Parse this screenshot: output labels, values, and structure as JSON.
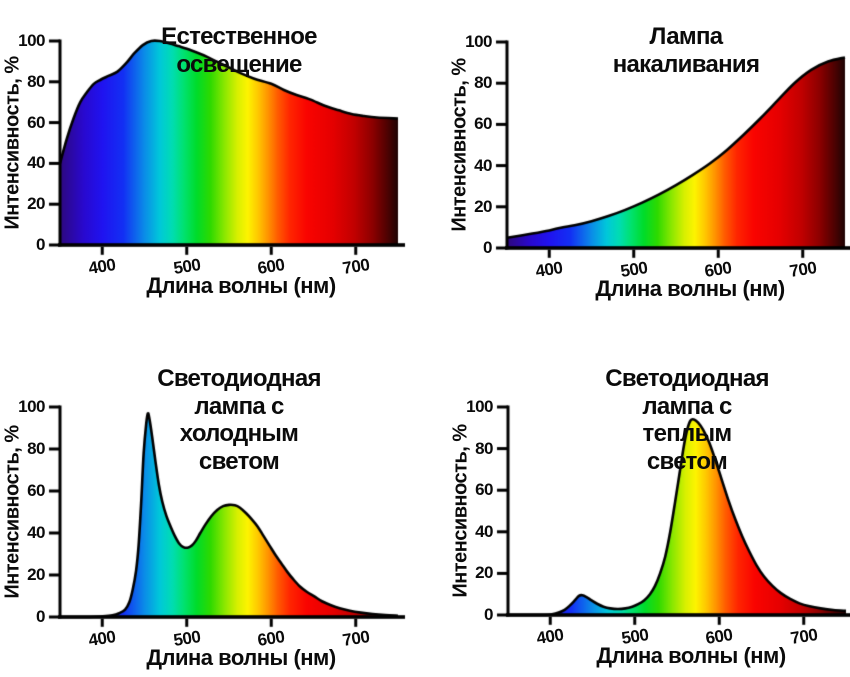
{
  "figure": {
    "background": "#ffffff",
    "text_color": "#0b0b0b",
    "curve_stroke": "#000000"
  },
  "spectrum_gradient": [
    {
      "wavelength": 350,
      "color": "#2e087e"
    },
    {
      "wavelength": 378,
      "color": "#2909cf"
    },
    {
      "wavelength": 400,
      "color": "#2013f0"
    },
    {
      "wavelength": 425,
      "color": "#1330f4"
    },
    {
      "wavelength": 450,
      "color": "#0b8ce8"
    },
    {
      "wavelength": 468,
      "color": "#00c8da"
    },
    {
      "wavelength": 483,
      "color": "#00ddb2"
    },
    {
      "wavelength": 497,
      "color": "#00e26e"
    },
    {
      "wavelength": 512,
      "color": "#00dc2a"
    },
    {
      "wavelength": 528,
      "color": "#2eda00"
    },
    {
      "wavelength": 545,
      "color": "#8ce800"
    },
    {
      "wavelength": 560,
      "color": "#d8f000"
    },
    {
      "wavelength": 572,
      "color": "#fdf400"
    },
    {
      "wavelength": 584,
      "color": "#ffc900"
    },
    {
      "wavelength": 596,
      "color": "#ff9400"
    },
    {
      "wavelength": 608,
      "color": "#ff5a00"
    },
    {
      "wavelength": 622,
      "color": "#ff2600"
    },
    {
      "wavelength": 642,
      "color": "#fa0400"
    },
    {
      "wavelength": 672,
      "color": "#e60000"
    },
    {
      "wavelength": 698,
      "color": "#c20000"
    },
    {
      "wavelength": 720,
      "color": "#8c0000"
    },
    {
      "wavelength": 738,
      "color": "#4c0202"
    },
    {
      "wavelength": 750,
      "color": "#1e0404"
    }
  ],
  "chart_data": [
    {
      "type": "area",
      "title": "Естественное освещение",
      "xlabel": "Длина волны (нм)",
      "ylabel": "Интенсивность, %",
      "x_range": [
        350,
        750
      ],
      "y_range": [
        0,
        100
      ],
      "x_ticks": [
        400,
        500,
        600,
        700
      ],
      "y_ticks": [
        0,
        20,
        40,
        60,
        80,
        100
      ],
      "grid": false,
      "fill": "spectrum",
      "points": [
        [
          350,
          40
        ],
        [
          358,
          52
        ],
        [
          366,
          62
        ],
        [
          374,
          70
        ],
        [
          382,
          75
        ],
        [
          390,
          79
        ],
        [
          398,
          81
        ],
        [
          408,
          83
        ],
        [
          418,
          85
        ],
        [
          428,
          89
        ],
        [
          438,
          94
        ],
        [
          448,
          98
        ],
        [
          458,
          100
        ],
        [
          468,
          100
        ],
        [
          478,
          99
        ],
        [
          490,
          97.5
        ],
        [
          505,
          95.5
        ],
        [
          520,
          93
        ],
        [
          535,
          90
        ],
        [
          550,
          87
        ],
        [
          565,
          84
        ],
        [
          580,
          81.5
        ],
        [
          600,
          79
        ],
        [
          615,
          76
        ],
        [
          630,
          73.5
        ],
        [
          645,
          71.5
        ],
        [
          665,
          68
        ],
        [
          680,
          66
        ],
        [
          695,
          64.2
        ],
        [
          710,
          63.2
        ],
        [
          725,
          62.5
        ],
        [
          750,
          62
        ]
      ]
    },
    {
      "type": "area",
      "title": "Лампа накаливания",
      "xlabel": "Длина волны (нм)",
      "ylabel": "Интенсивность, %",
      "x_range": [
        350,
        750
      ],
      "y_range": [
        0,
        100
      ],
      "x_ticks": [
        400,
        500,
        600,
        700
      ],
      "y_ticks": [
        0,
        20,
        40,
        60,
        80,
        100
      ],
      "grid": false,
      "fill": "spectrum",
      "points": [
        [
          350,
          5
        ],
        [
          380,
          7
        ],
        [
          400,
          8.5
        ],
        [
          415,
          10
        ],
        [
          430,
          11
        ],
        [
          450,
          13
        ],
        [
          470,
          15.5
        ],
        [
          490,
          18.5
        ],
        [
          510,
          22
        ],
        [
          530,
          26
        ],
        [
          550,
          30.5
        ],
        [
          570,
          35.5
        ],
        [
          590,
          41
        ],
        [
          610,
          47.5
        ],
        [
          630,
          55
        ],
        [
          650,
          63
        ],
        [
          670,
          71.5
        ],
        [
          690,
          80
        ],
        [
          710,
          86.5
        ],
        [
          730,
          90.5
        ],
        [
          750,
          92.5
        ]
      ]
    },
    {
      "type": "area",
      "title": "Светодиодная лампа с\nхолодным светом",
      "xlabel": "Длина волны (нм)",
      "ylabel": "Интенсивность, %",
      "x_range": [
        350,
        750
      ],
      "y_range": [
        0,
        100
      ],
      "x_ticks": [
        400,
        500,
        600,
        700
      ],
      "y_ticks": [
        0,
        20,
        40,
        60,
        80,
        100
      ],
      "grid": false,
      "fill": "spectrum",
      "points": [
        [
          350,
          0
        ],
        [
          385,
          0
        ],
        [
          400,
          0.3
        ],
        [
          412,
          0.8
        ],
        [
          420,
          1.8
        ],
        [
          427,
          3.5
        ],
        [
          432,
          7
        ],
        [
          436,
          13
        ],
        [
          440,
          22
        ],
        [
          443,
          34
        ],
        [
          446,
          54
        ],
        [
          449,
          78
        ],
        [
          452,
          92
        ],
        [
          454,
          97
        ],
        [
          456,
          94
        ],
        [
          459,
          86
        ],
        [
          463,
          74
        ],
        [
          467,
          63
        ],
        [
          471,
          55
        ],
        [
          476,
          48
        ],
        [
          481,
          43
        ],
        [
          486,
          38.5
        ],
        [
          491,
          35
        ],
        [
          496,
          33.3
        ],
        [
          501,
          33
        ],
        [
          506,
          34
        ],
        [
          511,
          36.5
        ],
        [
          516,
          40
        ],
        [
          522,
          44
        ],
        [
          529,
          48
        ],
        [
          536,
          51
        ],
        [
          543,
          52.8
        ],
        [
          550,
          53.4
        ],
        [
          557,
          53.2
        ],
        [
          563,
          52
        ],
        [
          570,
          49.5
        ],
        [
          577,
          46.5
        ],
        [
          584,
          43
        ],
        [
          591,
          38.5
        ],
        [
          598,
          34
        ],
        [
          605,
          29.5
        ],
        [
          612,
          25.5
        ],
        [
          619,
          21.5
        ],
        [
          626,
          18
        ],
        [
          634,
          14.5
        ],
        [
          642,
          12
        ],
        [
          651,
          9.8
        ],
        [
          660,
          7.5
        ],
        [
          670,
          5.7
        ],
        [
          681,
          4.2
        ],
        [
          693,
          3
        ],
        [
          706,
          2.1
        ],
        [
          720,
          1.4
        ],
        [
          735,
          0.9
        ],
        [
          750,
          0.6
        ]
      ]
    },
    {
      "type": "area",
      "title": "Светодиодная лампа с\nтеплым светом",
      "xlabel": "Длина волны (нм)",
      "ylabel": "Интенсивность, %",
      "x_range": [
        350,
        750
      ],
      "y_range": [
        0,
        100
      ],
      "x_ticks": [
        400,
        500,
        600,
        700
      ],
      "y_ticks": [
        0,
        20,
        40,
        60,
        80,
        100
      ],
      "grid": false,
      "fill": "spectrum",
      "points": [
        [
          350,
          0
        ],
        [
          392,
          0
        ],
        [
          402,
          0.4
        ],
        [
          410,
          1.2
        ],
        [
          417,
          2.5
        ],
        [
          423,
          4.5
        ],
        [
          429,
          7
        ],
        [
          434,
          9.2
        ],
        [
          438,
          9.5
        ],
        [
          443,
          8.6
        ],
        [
          449,
          7
        ],
        [
          456,
          5.3
        ],
        [
          463,
          4
        ],
        [
          471,
          3.2
        ],
        [
          480,
          2.9
        ],
        [
          489,
          3.2
        ],
        [
          497,
          4
        ],
        [
          504,
          5.2
        ],
        [
          511,
          7
        ],
        [
          518,
          10
        ],
        [
          524,
          14
        ],
        [
          530,
          20
        ],
        [
          536,
          28
        ],
        [
          542,
          40
        ],
        [
          548,
          55
        ],
        [
          553,
          68
        ],
        [
          558,
          81
        ],
        [
          562,
          89
        ],
        [
          566,
          93.5
        ],
        [
          570,
          94
        ],
        [
          575,
          92.5
        ],
        [
          581,
          89
        ],
        [
          588,
          83
        ],
        [
          595,
          75
        ],
        [
          603,
          65
        ],
        [
          611,
          55
        ],
        [
          619,
          46
        ],
        [
          627,
          38
        ],
        [
          635,
          31
        ],
        [
          644,
          24
        ],
        [
          653,
          18.5
        ],
        [
          663,
          14
        ],
        [
          673,
          10.5
        ],
        [
          684,
          7.7
        ],
        [
          695,
          5.6
        ],
        [
          707,
          4.2
        ],
        [
          720,
          3.2
        ],
        [
          735,
          2.4
        ],
        [
          750,
          2
        ]
      ]
    }
  ]
}
